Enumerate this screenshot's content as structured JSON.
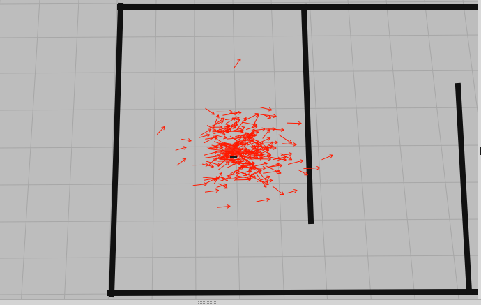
{
  "scene": {
    "background_color": "#bdbdbd",
    "grid_color": "#a7a7a7",
    "wall_color": "#111111",
    "particle_color": "#ff1a00",
    "robot_color": "#1a1a1a"
  },
  "particle_cloud": {
    "count": 220,
    "seed": 7
  }
}
